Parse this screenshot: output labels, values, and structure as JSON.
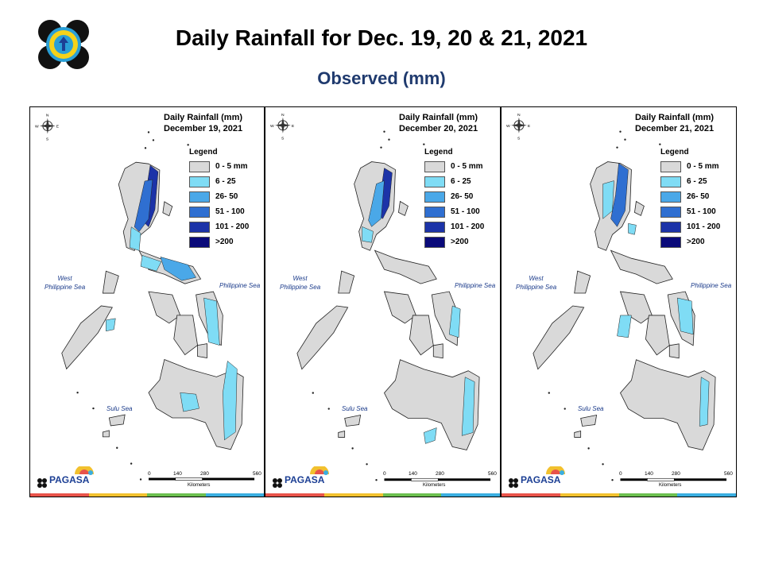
{
  "title": "Daily Rainfall for Dec. 19, 20 & 21, 2021",
  "subtitle": "Observed (mm)",
  "logo_icon": "pagasa-seal-icon",
  "legend": {
    "title": "Legend",
    "items": [
      {
        "label": "0 - 5 mm",
        "color": "#d9d9d9"
      },
      {
        "label": "6 - 25",
        "color": "#7fdcf5"
      },
      {
        "label": "26- 50",
        "color": "#4aa8e8"
      },
      {
        "label": "51 - 100",
        "color": "#2f6fd1"
      },
      {
        "label": "101 - 200",
        "color": "#1c33a8"
      },
      {
        "label": ">200",
        "color": "#0a0a7a"
      }
    ]
  },
  "seas": {
    "west": [
      "West",
      "Philippine Sea"
    ],
    "east": "Philippine Sea",
    "sulu": "Sulu Sea"
  },
  "scalebar": {
    "ticks": [
      "0",
      "140",
      "280",
      "560"
    ],
    "unit": "Kilometers"
  },
  "compass": {
    "n": "N",
    "s": "S",
    "e": "E",
    "w": "W"
  },
  "branding": {
    "text": "PAGASA",
    "stripe_colors": [
      "#e8534a",
      "#f2c12e",
      "#6cbf4f",
      "#3aaee0"
    ]
  },
  "panels": [
    {
      "title_line1": "Daily Rainfall (mm)",
      "title_line2": "December 19, 2021"
    },
    {
      "title_line1": "Daily Rainfall (mm)",
      "title_line2": "December 20, 2021"
    },
    {
      "title_line1": "Daily Rainfall (mm)",
      "title_line2": "December 21, 2021"
    }
  ]
}
